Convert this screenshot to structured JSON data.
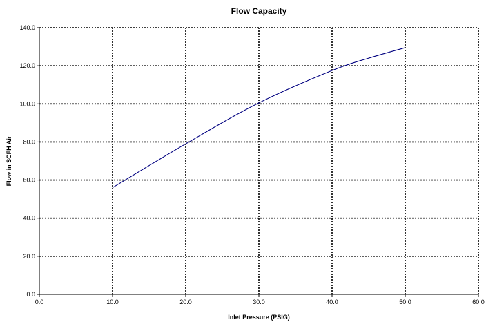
{
  "chart_data": {
    "type": "line",
    "title": "Flow Capacity",
    "xlabel": "Inlet Pressure (PSIG)",
    "ylabel": "Flow in SCFH Air",
    "xlim": [
      0,
      60
    ],
    "ylim": [
      0,
      140
    ],
    "x_ticks": [
      "0.0",
      "10.0",
      "20.0",
      "30.0",
      "40.0",
      "50.0",
      "60.0"
    ],
    "y_ticks": [
      "0.0",
      "20.0",
      "40.0",
      "60.0",
      "80.0",
      "100.0",
      "120.0",
      "140.0"
    ],
    "grid": true,
    "legend": "none",
    "series": [
      {
        "color": "#000080",
        "x": [
          10,
          20,
          30,
          40,
          45,
          50
        ],
        "y": [
          56,
          79,
          100.5,
          117.5,
          124,
          129.5
        ]
      }
    ]
  }
}
